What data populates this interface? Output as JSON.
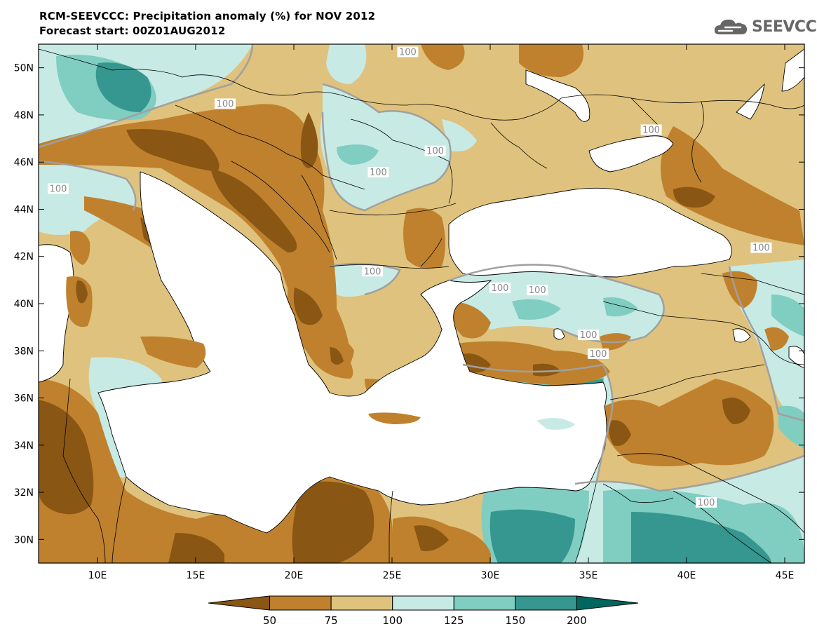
{
  "header": {
    "title_line1": "RCM-SEEVCCC: Precipitation anomaly (%) for NOV 2012",
    "title_line2": "Forecast start: 00Z01AUG2012",
    "logo_text": "SEEVCCC",
    "logo_icon": "cloud-icon"
  },
  "map": {
    "lon_range": [
      7,
      46
    ],
    "lat_range": [
      29,
      51
    ],
    "lon_ticks": [
      "10E",
      "15E",
      "20E",
      "25E",
      "30E",
      "35E",
      "40E",
      "45E"
    ],
    "lon_values": [
      10,
      15,
      20,
      25,
      30,
      35,
      40,
      45
    ],
    "lat_ticks": [
      "30N",
      "32N",
      "34N",
      "36N",
      "38N",
      "40N",
      "42N",
      "44N",
      "46N",
      "48N",
      "50N"
    ],
    "lat_values": [
      30,
      32,
      34,
      36,
      38,
      40,
      42,
      44,
      46,
      48,
      50
    ],
    "contour_labels": [
      {
        "text": "100",
        "lon": 25.8,
        "lat": 50.6
      },
      {
        "text": "100",
        "lon": 16.5,
        "lat": 48.4
      },
      {
        "text": "100",
        "lon": 27.2,
        "lat": 46.4
      },
      {
        "text": "100",
        "lon": 24.3,
        "lat": 45.5
      },
      {
        "text": "100",
        "lon": 8.0,
        "lat": 44.8
      },
      {
        "text": "100",
        "lon": 38.2,
        "lat": 47.3
      },
      {
        "text": "100",
        "lon": 24.0,
        "lat": 41.3
      },
      {
        "text": "100",
        "lon": 30.5,
        "lat": 40.6
      },
      {
        "text": "100",
        "lon": 32.4,
        "lat": 40.5
      },
      {
        "text": "100",
        "lon": 35.0,
        "lat": 38.6
      },
      {
        "text": "100",
        "lon": 35.5,
        "lat": 37.8
      },
      {
        "text": "100",
        "lon": 43.8,
        "lat": 42.3
      },
      {
        "text": "100",
        "lon": 41.0,
        "lat": 31.5
      }
    ],
    "colors": {
      "lt50": "#8a5613",
      "c50_75": "#bf812d",
      "c75_100": "#dfc27d",
      "c100_125": "#c7eae5",
      "c125_150": "#80cdc1",
      "c150_200": "#35978f",
      "gt200": "#01665e",
      "sea": "#ffffff",
      "contour": "#a0a0a0"
    }
  },
  "colorbar": {
    "labels": [
      "50",
      "75",
      "100",
      "125",
      "150",
      "200"
    ]
  }
}
